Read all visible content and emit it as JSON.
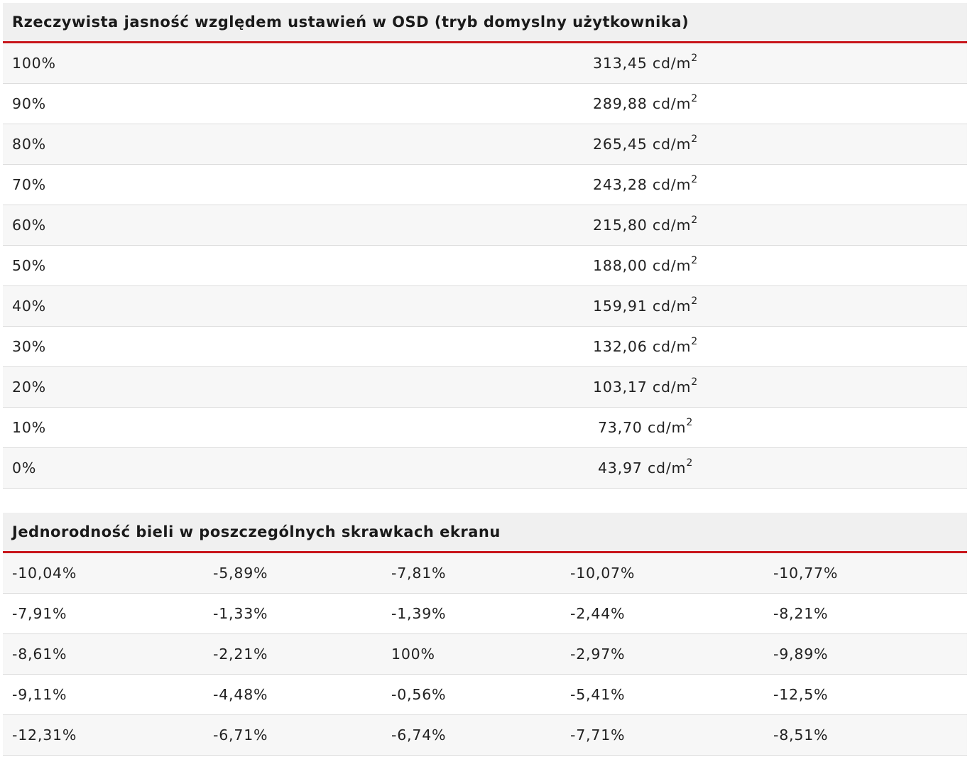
{
  "brightness_table": {
    "title": "Rzeczywista jasność względem ustawień w OSD (tryb domyslny użytkownika)",
    "unit": "cd/m",
    "unit_exponent": "2",
    "rows": [
      {
        "level": "100%",
        "value": "313,45"
      },
      {
        "level": "90%",
        "value": "289,88"
      },
      {
        "level": "80%",
        "value": "265,45"
      },
      {
        "level": "70%",
        "value": "243,28"
      },
      {
        "level": "60%",
        "value": "215,80"
      },
      {
        "level": "50%",
        "value": "188,00"
      },
      {
        "level": "40%",
        "value": "159,91"
      },
      {
        "level": "30%",
        "value": "132,06"
      },
      {
        "level": "20%",
        "value": "103,17"
      },
      {
        "level": "10%",
        "value": "73,70"
      },
      {
        "level": "0%",
        "value": "43,97"
      }
    ]
  },
  "uniformity_table": {
    "title": "Jednorodność bieli w poszczególnych skrawkach ekranu",
    "rows": [
      [
        "-10,04%",
        "-5,89%",
        "-7,81%",
        "-10,07%",
        "-10,77%"
      ],
      [
        "-7,91%",
        "-1,33%",
        "-1,39%",
        "-2,44%",
        "-8,21%"
      ],
      [
        "-8,61%",
        "-2,21%",
        "100%",
        "-2,97%",
        "-9,89%"
      ],
      [
        "-9,11%",
        "-4,48%",
        "-0,56%",
        "-5,41%",
        "-12,5%"
      ],
      [
        "-12,31%",
        "-6,71%",
        "-6,74%",
        "-7,71%",
        "-8,51%"
      ]
    ]
  },
  "colors": {
    "accent_line": "#c8151b",
    "header_bg": "#f0f0f0"
  }
}
